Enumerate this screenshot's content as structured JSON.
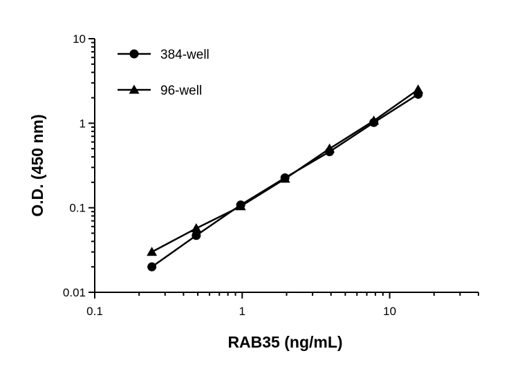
{
  "chart_data": {
    "type": "line",
    "title": "",
    "xlabel": "RAB35 (ng/mL)",
    "ylabel": "O.D. (450 nm)",
    "x_scale": "log",
    "y_scale": "log",
    "xlim": [
      0.1,
      40
    ],
    "ylim": [
      0.01,
      10
    ],
    "x_ticks": [
      0.1,
      1,
      10
    ],
    "x_tick_labels": [
      "0.1",
      "1",
      "10"
    ],
    "y_ticks": [
      0.01,
      0.1,
      1,
      10
    ],
    "y_tick_labels": [
      "0.01",
      "0.1",
      "1",
      "10"
    ],
    "grid": false,
    "legend_position": "top-left",
    "series": [
      {
        "name": "384-well",
        "marker": "circle",
        "color": "#000000",
        "x": [
          0.244,
          0.488,
          0.977,
          1.95,
          3.91,
          7.81,
          15.6
        ],
        "y": [
          0.02,
          0.047,
          0.108,
          0.226,
          0.46,
          1.02,
          2.2
        ]
      },
      {
        "name": "96-well",
        "marker": "triangle",
        "color": "#000000",
        "x": [
          0.244,
          0.488,
          0.977,
          1.95,
          3.91,
          7.81,
          15.6
        ],
        "y": [
          0.03,
          0.057,
          0.104,
          0.22,
          0.5,
          1.07,
          2.5
        ]
      }
    ]
  }
}
